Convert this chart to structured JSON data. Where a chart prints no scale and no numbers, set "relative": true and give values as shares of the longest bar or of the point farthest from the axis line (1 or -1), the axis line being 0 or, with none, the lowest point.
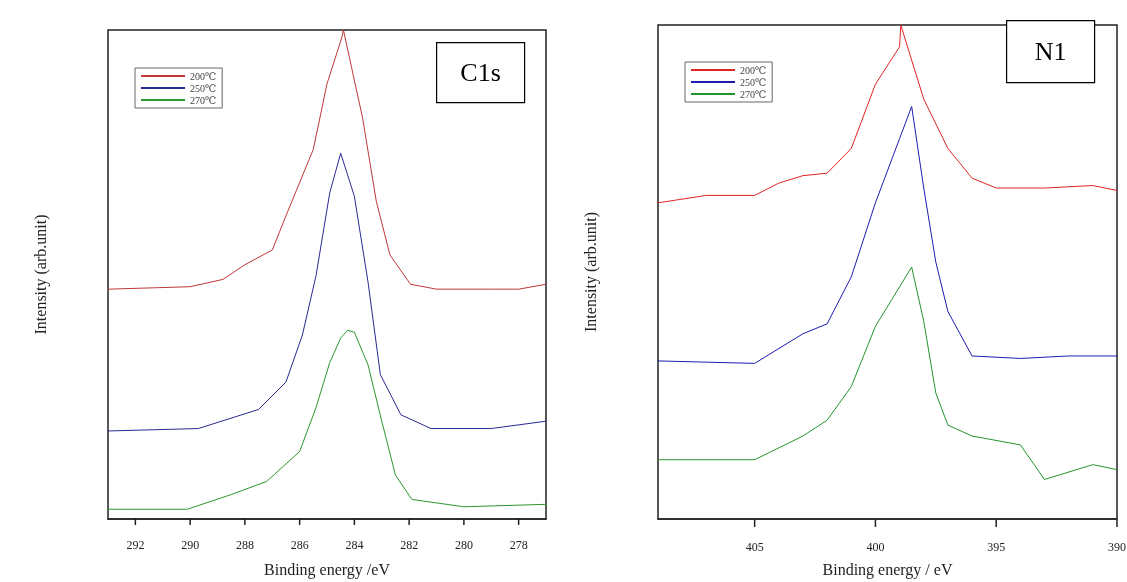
{
  "chart_data": [
    {
      "type": "line",
      "relative": true,
      "xlabel": "Binding energy /eV",
      "ylabel": "Intensity (arb.unit)",
      "annotations": [
        "C1s"
      ],
      "xlim": [
        293,
        277
      ],
      "xticks": [
        292,
        290,
        288,
        286,
        284,
        282,
        280,
        278
      ],
      "legend": "top left",
      "marker": "none",
      "line_style": "solid",
      "series": [
        {
          "name": "200℃",
          "color": "#c03838",
          "x": [
            293,
            290,
            288.8,
            288,
            287,
            286.5,
            285.5,
            285.0,
            284.45,
            284.4,
            283.7,
            283.2,
            282.7,
            281.95,
            281,
            279,
            278,
            277
          ],
          "values": [
            0.47,
            0.475,
            0.49,
            0.52,
            0.55,
            0.62,
            0.756,
            0.89,
            0.986,
            1.0,
            0.82,
            0.65,
            0.54,
            0.48,
            0.47,
            0.47,
            0.47,
            0.48
          ]
        },
        {
          "name": "250℃",
          "color": "#2a2a96",
          "x": [
            293,
            289.7,
            287.5,
            286.5,
            285.9,
            285.4,
            284.9,
            284.5,
            284.0,
            283.5,
            283.05,
            282.3,
            281.2,
            279,
            277
          ],
          "values": [
            0.18,
            0.185,
            0.224,
            0.28,
            0.376,
            0.498,
            0.667,
            0.748,
            0.66,
            0.484,
            0.295,
            0.213,
            0.185,
            0.185,
            0.2
          ]
        },
        {
          "name": "270℃",
          "color": "#2e962e",
          "x": [
            293,
            290.1,
            288.5,
            287.2,
            286.0,
            285.4,
            284.9,
            284.5,
            284.25,
            284.0,
            283.5,
            283.0,
            282.5,
            281.9,
            280,
            277
          ],
          "values": [
            0.02,
            0.02,
            0.05,
            0.077,
            0.138,
            0.228,
            0.32,
            0.37,
            0.386,
            0.382,
            0.315,
            0.2,
            0.09,
            0.04,
            0.025,
            0.03
          ]
        }
      ]
    },
    {
      "type": "line",
      "relative": true,
      "xlabel": "Binding energy / eV",
      "ylabel": "Intensity (arb.unit)",
      "annotations": [
        "N1"
      ],
      "xlim": [
        409,
        390
      ],
      "xticks": [
        405,
        400,
        395,
        390
      ],
      "legend": "top left",
      "marker": "none",
      "line_style": "solid",
      "series": [
        {
          "name": "200℃",
          "color": "#e02424",
          "x": [
            409,
            407,
            405,
            404,
            403,
            402,
            401,
            400,
            399,
            398.95,
            398,
            397,
            396,
            395,
            393,
            391,
            390
          ],
          "values": [
            0.64,
            0.655,
            0.655,
            0.68,
            0.695,
            0.7,
            0.75,
            0.88,
            0.956,
            1.0,
            0.85,
            0.75,
            0.69,
            0.67,
            0.67,
            0.675,
            0.665
          ]
        },
        {
          "name": "250℃",
          "color": "#1c1cae",
          "x": [
            409,
            405,
            403,
            402,
            401,
            400,
            399,
            398.5,
            398,
            397.5,
            397,
            396,
            394,
            392,
            390
          ],
          "values": [
            0.32,
            0.315,
            0.375,
            0.395,
            0.49,
            0.64,
            0.77,
            0.835,
            0.67,
            0.52,
            0.42,
            0.33,
            0.325,
            0.33,
            0.33
          ]
        },
        {
          "name": "270℃",
          "color": "#24942c",
          "x": [
            409,
            405,
            403,
            402,
            401,
            400,
            399,
            398.5,
            398,
            397.5,
            397,
            396,
            394,
            393,
            391,
            390
          ],
          "values": [
            0.12,
            0.12,
            0.168,
            0.2,
            0.268,
            0.39,
            0.47,
            0.51,
            0.4,
            0.255,
            0.19,
            0.168,
            0.15,
            0.08,
            0.11,
            0.1
          ]
        }
      ]
    }
  ]
}
